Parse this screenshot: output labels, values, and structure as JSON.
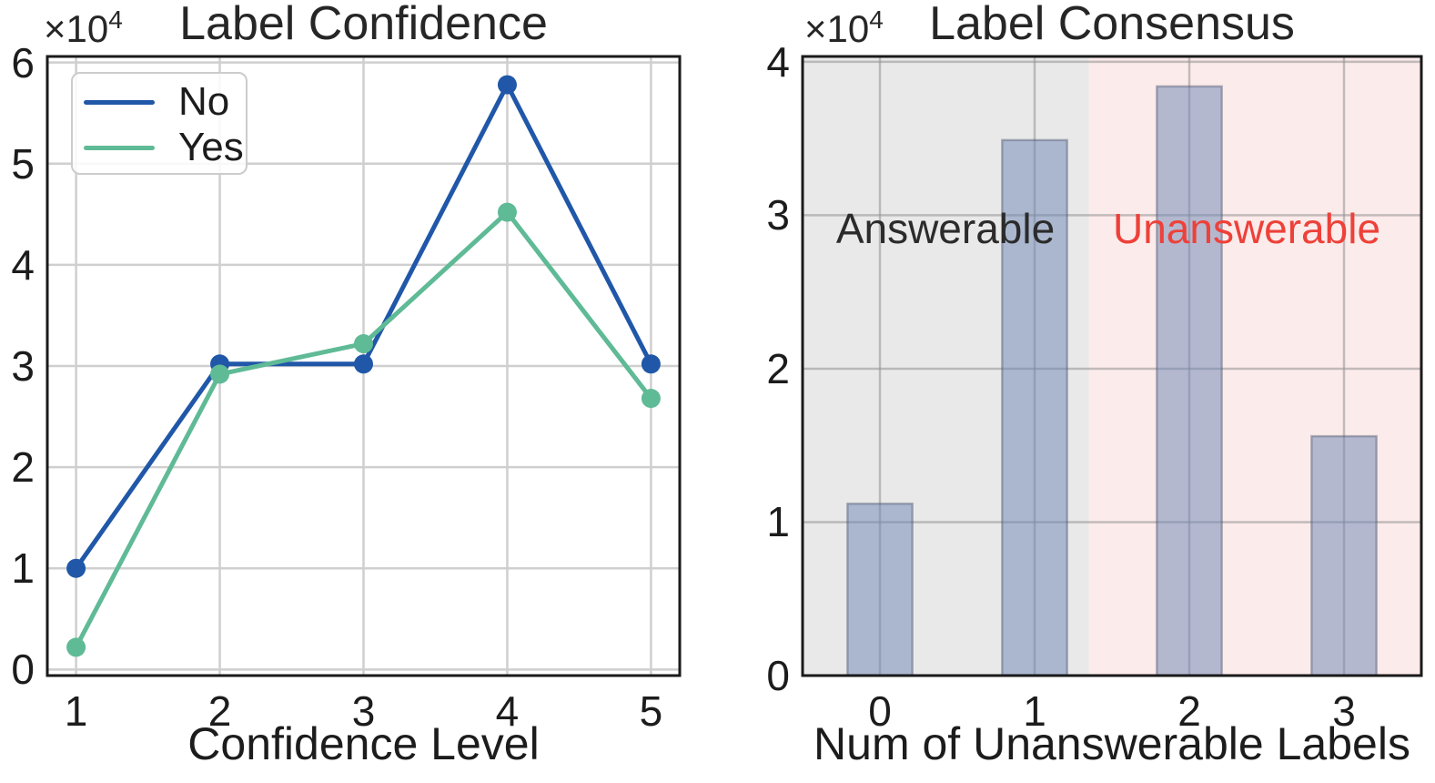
{
  "figure": {
    "background": "#ffffff",
    "frame_color": "#1a1a1a",
    "text_color": "#1c1c1c"
  },
  "chart_data": [
    {
      "id": "confidence",
      "type": "line",
      "title": "Label Confidence",
      "xlabel": "Confidence Level",
      "ylabel": "",
      "offset_base": "×10",
      "offset_exp": "4",
      "x": [
        1,
        2,
        3,
        4,
        5
      ],
      "xticks": [
        "1",
        "2",
        "3",
        "4",
        "5"
      ],
      "xtick_vals": [
        1,
        2,
        3,
        4,
        5
      ],
      "yticks": [
        "0",
        "1",
        "2",
        "3",
        "4",
        "5",
        "6"
      ],
      "ytick_vals": [
        0,
        1,
        2,
        3,
        4,
        5,
        6
      ],
      "xlim": [
        0.8,
        5.2
      ],
      "ylim": [
        -0.06,
        6.06
      ],
      "grid": true,
      "grid_color": "#cfcfcf",
      "legend_position": "upper-left",
      "series": [
        {
          "name": "No",
          "color": "#2057a8",
          "values": [
            1.0,
            3.02,
            3.02,
            5.78,
            3.02
          ]
        },
        {
          "name": "Yes",
          "color": "#5fba96",
          "values": [
            0.22,
            2.92,
            3.22,
            4.52,
            2.68
          ]
        }
      ],
      "value_unit": "counts × 10^4"
    },
    {
      "id": "consensus",
      "type": "bar",
      "title": "Label Consensus",
      "xlabel": "Num of Unanswerable Labels",
      "ylabel": "",
      "offset_base": "×10",
      "offset_exp": "4",
      "categories": [
        "0",
        "1",
        "2",
        "3"
      ],
      "xticks": [
        "0",
        "1",
        "2",
        "3"
      ],
      "xtick_vals": [
        0,
        1,
        2,
        3
      ],
      "yticks": [
        "0",
        "1",
        "2",
        "3",
        "4"
      ],
      "ytick_vals": [
        0,
        1,
        2,
        3,
        4
      ],
      "xlim": [
        -0.5,
        3.5
      ],
      "ylim": [
        0,
        4.035
      ],
      "grid": true,
      "grid_color": "rgba(145,145,145,0.55)",
      "values": [
        1.12,
        3.49,
        3.84,
        1.56
      ],
      "bar_width": 0.42,
      "bar_fill": "rgba(108,134,180,0.5)",
      "bar_edge": "rgba(70,80,105,0.4)",
      "spans": [
        {
          "label": "Answerable",
          "from": -0.5,
          "to": 1.35,
          "bg": "#e9e9e9",
          "label_color": "#2b2b2b"
        },
        {
          "label": "Unanswerable",
          "from": 1.35,
          "to": 3.5,
          "bg": "#fcebeb",
          "label_color": "#ed4139"
        }
      ],
      "value_unit": "counts × 10^4"
    }
  ]
}
